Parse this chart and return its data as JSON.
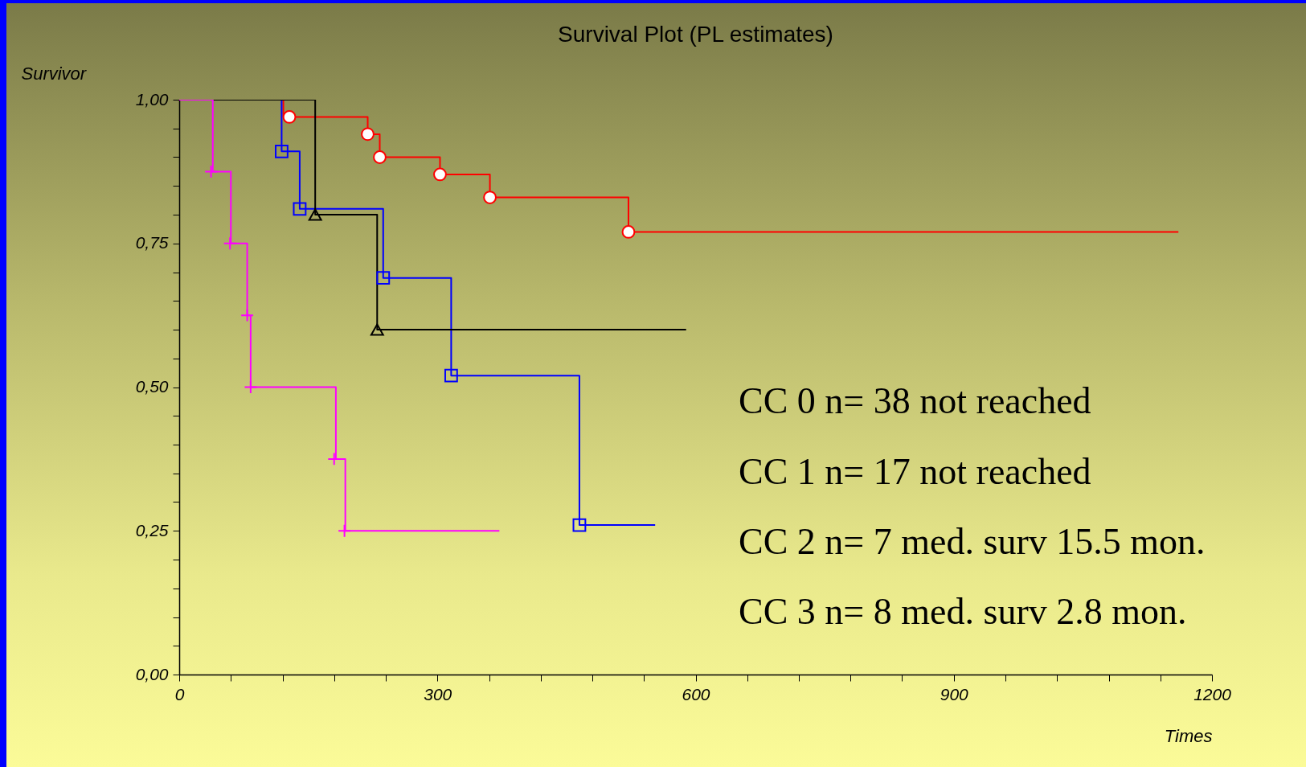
{
  "chart_data": {
    "type": "step",
    "title": "Survival Plot (PL estimates)",
    "xlabel": "Times",
    "ylabel": "Survivor",
    "xlim": [
      0,
      1200
    ],
    "ylim": [
      0,
      1
    ],
    "xticks": [
      0,
      {
        "value": 60,
        "label": null
      },
      {
        "value": 120,
        "label": null
      },
      {
        "value": 180,
        "label": null
      },
      {
        "value": 240,
        "label": null
      },
      300,
      {
        "value": 360,
        "label": null
      },
      {
        "value": 420,
        "label": null
      },
      {
        "value": 480,
        "label": null
      },
      {
        "value": 540,
        "label": null
      },
      600,
      {
        "value": 660,
        "label": null
      },
      {
        "value": 720,
        "label": null
      },
      {
        "value": 780,
        "label": null
      },
      {
        "value": 840,
        "label": null
      },
      900,
      {
        "value": 960,
        "label": null
      },
      {
        "value": 1020,
        "label": null
      },
      {
        "value": 1080,
        "label": null
      },
      {
        "value": 1140,
        "label": null
      },
      1200
    ],
    "yticks": [
      {
        "value": 0,
        "label": "0,00"
      },
      {
        "value": 0.05,
        "label": null
      },
      {
        "value": 0.1,
        "label": null
      },
      {
        "value": 0.15,
        "label": null
      },
      {
        "value": 0.2,
        "label": null
      },
      {
        "value": 0.25,
        "label": "0,25"
      },
      {
        "value": 0.3,
        "label": null
      },
      {
        "value": 0.35,
        "label": null
      },
      {
        "value": 0.4,
        "label": null
      },
      {
        "value": 0.45,
        "label": null
      },
      {
        "value": 0.5,
        "label": "0,50"
      },
      {
        "value": 0.55,
        "label": null
      },
      {
        "value": 0.6,
        "label": null
      },
      {
        "value": 0.65,
        "label": null
      },
      {
        "value": 0.7,
        "label": null
      },
      {
        "value": 0.75,
        "label": "0,75"
      },
      {
        "value": 0.8,
        "label": null
      },
      {
        "value": 0.85,
        "label": null
      },
      {
        "value": 0.9,
        "label": null
      },
      {
        "value": 0.95,
        "label": null
      },
      {
        "value": 1,
        "label": "1,00"
      }
    ],
    "grid": false,
    "series": [
      {
        "type": "step",
        "color": "#ff0000",
        "x": [
          0,
          121,
          219,
          233,
          303,
          361,
          522,
          1161
        ],
        "values": [
          1,
          0.97,
          0.94,
          0.9,
          0.87,
          0.83,
          0.77,
          0.77
        ]
      },
      {
        "type": "step",
        "color": "#0000ff",
        "x": [
          0,
          119,
          140,
          237,
          316,
          465,
          553
        ],
        "values": [
          1,
          0.91,
          0.81,
          0.69,
          0.52,
          0.26,
          0.26
        ]
      },
      {
        "type": "step",
        "color": "#000000",
        "x": [
          0,
          158,
          230,
          589
        ],
        "values": [
          1,
          0.8,
          0.6,
          0.6
        ]
      },
      {
        "type": "step",
        "color": "#ff00ff",
        "x": [
          0,
          39,
          60,
          79,
          83,
          182,
          193,
          372
        ],
        "values": [
          1,
          0.875,
          0.75,
          0.625,
          0.5,
          0.375,
          0.25,
          0.25
        ]
      },
      {
        "type": "scatter",
        "marker": "circle",
        "color": "#ff0000",
        "x": [
          128,
          219,
          233,
          303,
          361,
          522
        ],
        "values": [
          0.97,
          0.94,
          0.9,
          0.87,
          0.83,
          0.77
        ]
      },
      {
        "type": "scatter",
        "marker": "square",
        "color": "#0000ff",
        "x": [
          119,
          140,
          237,
          316,
          465
        ],
        "values": [
          0.91,
          0.81,
          0.69,
          0.52,
          0.26
        ]
      },
      {
        "type": "scatter",
        "marker": "triangle",
        "color": "#000000",
        "x": [
          158,
          230
        ],
        "values": [
          0.8,
          0.6
        ]
      },
      {
        "type": "scatter",
        "marker": "cross",
        "color": "#ff00ff",
        "x": [
          37,
          59,
          79,
          83,
          180,
          192
        ],
        "values": [
          0.875,
          0.75,
          0.625,
          0.5,
          0.375,
          0.25
        ]
      }
    ],
    "annotations": [
      "CC 0  n= 38   not reached",
      "CC 1  n= 17   not reached",
      "CC 2  n=  7    med. surv   15.5 mon.",
      "CC 3  n= 8     med. surv  2.8 mon."
    ]
  }
}
